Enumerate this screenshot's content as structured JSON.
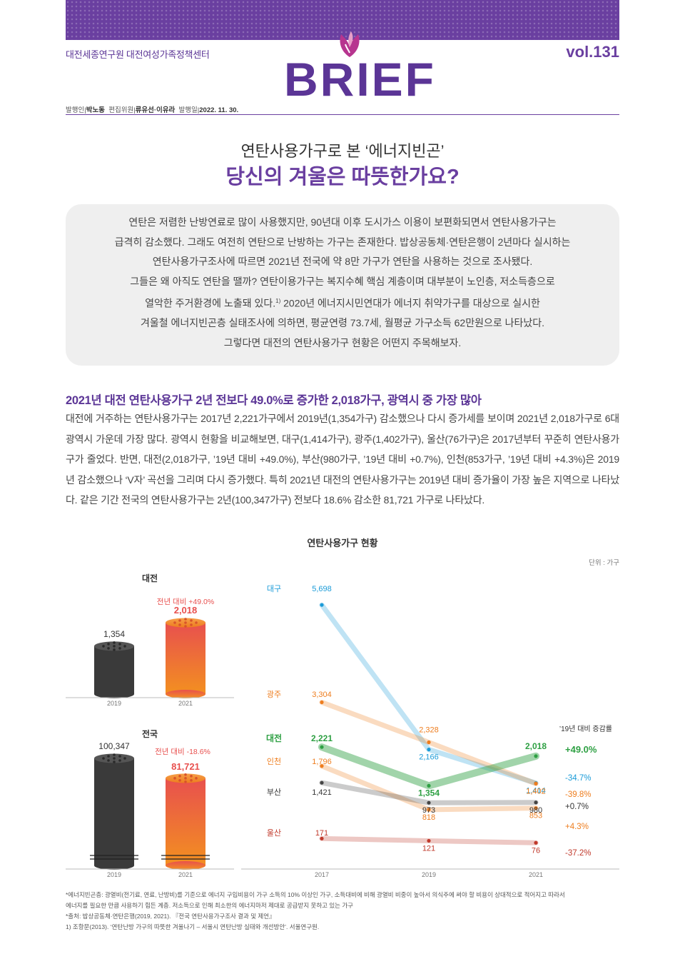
{
  "header": {
    "org": "대전세종연구원 대전여성가족정책센터",
    "volume": "vol.131",
    "logo_text": "BRIEF",
    "masthead": {
      "publisher_label": "발행인",
      "publisher": "박노동",
      "editor_label": "편집위원",
      "editors": "류유선·이유라",
      "date_label": "발행일",
      "date": "2022. 11. 30."
    }
  },
  "title": {
    "line1": "연탄사용가구로 본 ‘에너지빈곤’",
    "line2": "당신의 겨울은 따뜻한가요?"
  },
  "summary": {
    "lines": [
      "연탄은 저렴한 난방연료로 많이 사용했지만, 90년대 이후 도시가스 이용이 보편화되면서 연탄사용가구는",
      "급격히 감소했다. 그래도 여전히 연탄으로 난방하는 가구는 존재한다. 밥상공동체·연탄은행이 2년마다 실시하는",
      "연탄사용가구조사에 따르면 2021년 전국에 약 8만 가구가 연탄을 사용하는 것으로 조사됐다.",
      "그들은 왜 아직도 연탄을 땔까? 연탄이용가구는 복지수혜 핵심 계층이며 대부분이 노인층, 저소득층으로",
      "열악한 주거환경에 노출돼 있다.",
      "1)",
      " 2020년 에너지시민연대가 에너지 취약가구를 대상으로 실시한",
      "겨울철 에너지빈곤층 실태조사에 의하면, 평균연령 73.7세, 월평균 가구소득 62만원으로 나타났다.",
      "그렇다면 대전의 연탄사용가구 현황은 어떤지 주목해보자."
    ]
  },
  "section": {
    "heading": "2021년 대전 연탄사용가구 2년 전보다 49.0%로 증가한 2,018가구, 광역시 중 가장 많아",
    "paragraph": "대전에 거주하는 연탄사용가구는 2017년 2,221가구에서 2019년(1,354가구) 감소했으나 다시 증가세를 보이며 2021년 2,018가구로 6대 광역시 가운데 가장 많다. 광역시 현황을 비교해보면, 대구(1,414가구), 광주(1,402가구), 울산(76가구)은 2017년부터 꾸준히 연탄사용가구가 줄었다. 반면, 대전(2,018가구, ’19년 대비 +49.0%), 부산(980가구, ’19년 대비 +0.7%), 인천(853가구, ’19년 대비 +4.3%)은 2019년 감소했으나 ‘V자’ 곡선을 그리며 다시 증가했다. 특히 2021년 대전의 연탄사용가구는 2019년 대비 증가율이 가장 높은 지역으로 나타났다. 같은 기간 전국의 연탄사용가구는 2년(100,347가구) 전보다 18.6% 감소한 81,721 가구로 나타났다."
  },
  "chart_heading": "연탄사용가구 현황",
  "unit_label": "단위 : 가구",
  "chart_data": [
    {
      "type": "bar",
      "title": "대전",
      "categories": [
        "2019",
        "2021"
      ],
      "values": [
        1354,
        2018
      ],
      "value_labels": [
        "1,354",
        "2,018"
      ],
      "annotation": "전년 대비 +49.0%"
    },
    {
      "type": "bar",
      "title": "전국",
      "categories": [
        "2019",
        "2021"
      ],
      "values": [
        100347,
        81721
      ],
      "value_labels": [
        "100,347",
        "81,721"
      ],
      "annotation": "전년 대비 -18.6%",
      "axis_break": true
    },
    {
      "type": "line",
      "x": [
        "2017",
        "2019",
        "2021"
      ],
      "change_header": "’19년 대비 증감률",
      "series": [
        {
          "name": "대구",
          "values": [
            5698,
            2166,
            1414
          ],
          "labels": [
            "5,698",
            "2,166",
            "1,414"
          ],
          "change": "-34.7%",
          "color": "#1a9bd8"
        },
        {
          "name": "광주",
          "values": [
            3304,
            2328,
            1402
          ],
          "labels": [
            "3,304",
            "2,328",
            "1,402"
          ],
          "change": "-39.8%",
          "color": "#ee7d1e"
        },
        {
          "name": "대전",
          "values": [
            2221,
            1354,
            2018
          ],
          "labels": [
            "2,221",
            "1,354",
            "2,018"
          ],
          "change": "+49.0%",
          "color": "#2ea043"
        },
        {
          "name": "인천",
          "values": [
            1796,
            818,
            853
          ],
          "labels": [
            "1,796",
            "818",
            "853"
          ],
          "change": "+4.3%",
          "color": "#ee7d1e"
        },
        {
          "name": "부산",
          "values": [
            1421,
            973,
            980
          ],
          "labels": [
            "1,421",
            "973",
            "980"
          ],
          "change": "+0.7%",
          "color": "#444444"
        },
        {
          "name": "울산",
          "values": [
            171,
            121,
            76
          ],
          "labels": [
            "171",
            "121",
            "76"
          ],
          "change": "-37.2%",
          "color": "#c0392b"
        }
      ]
    }
  ],
  "footnotes": [
    "*에너지빈곤층: 광열비(전기료, 연료, 난방비)를 기준으로 에너지 구입비용이 가구 소득의 10% 이상인 가구, 소득대비에 비해 광열비 비중이 높아서 의식주에 써야 할 비용이 상대적으로 적어지고 따라서",
    "  에너지를 필요한 만큼 사용하기 힘든 계층. 저소득으로 인해 최소한의 에너지마저 제대로 공급받지 못하고 있는 가구",
    "*출처: 밥상공동체·연탄은행(2019, 2021). 『전국 연탄사용가구조사 결과 및 제언』",
    "1) 조항문(2013). ‘연탄난방 가구의 따뜻한 겨울나기 – 서울시 연탄난방 실태와 개선방안’. 서울연구원."
  ]
}
